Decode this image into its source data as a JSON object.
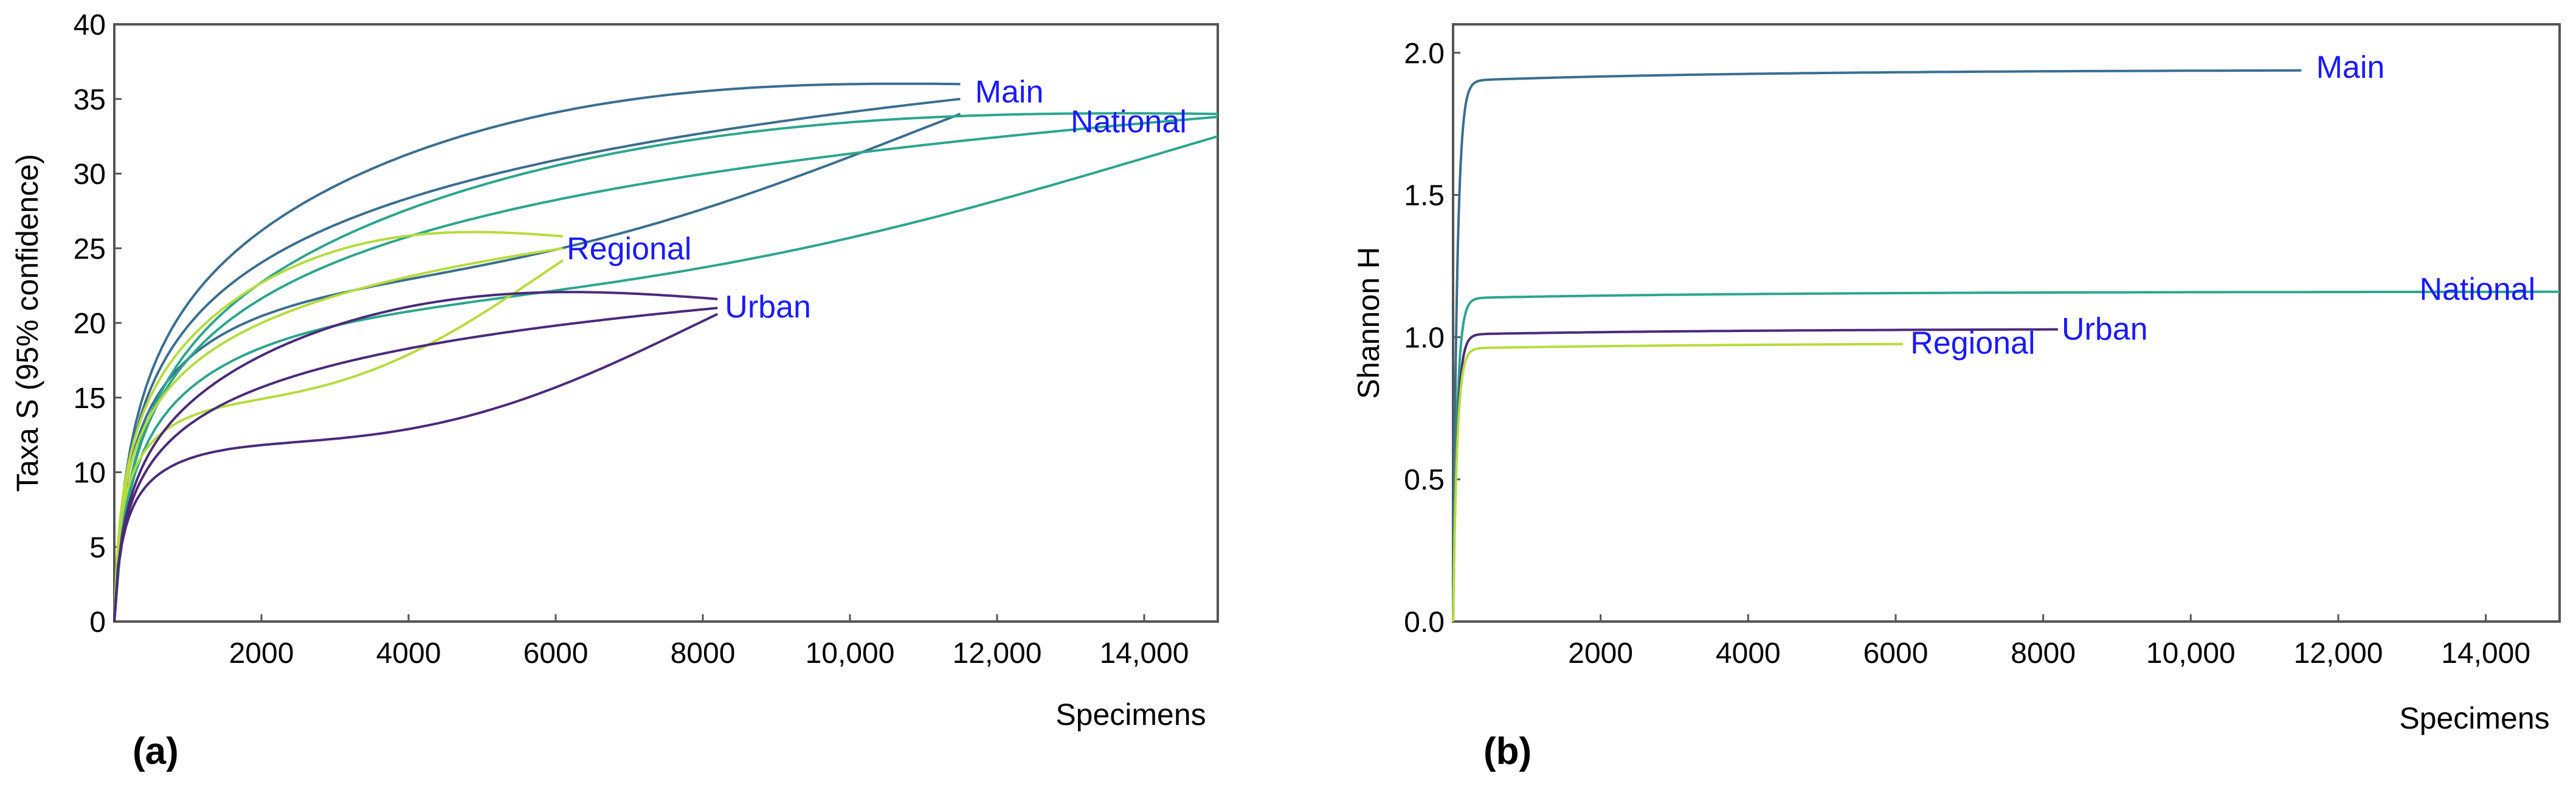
{
  "chart_data": [
    {
      "panel": "(a)",
      "type": "line",
      "xlabel": "Specimens",
      "ylabel": "Taxa S (95% confidence)",
      "xlim": [
        0,
        15000
      ],
      "ylim": [
        0,
        40
      ],
      "xticks": [
        2000,
        4000,
        6000,
        8000,
        10000,
        12000,
        14000
      ],
      "xtick_labels": [
        "2000",
        "4000",
        "6000",
        "8000",
        "10,000",
        "12,000",
        "14,000"
      ],
      "yticks": [
        0,
        5,
        10,
        15,
        20,
        25,
        30,
        35,
        40
      ],
      "ytick_labels": [
        "0",
        "5",
        "10",
        "15",
        "20",
        "25",
        "30",
        "35",
        "40"
      ],
      "series": [
        {
          "name": "Main",
          "color": "#3a6e8f",
          "n_max": 11500,
          "estimate": 35.0,
          "upper": 36.0,
          "lower": 34.0,
          "label_x": 11700,
          "label_y": 35.5
        },
        {
          "name": "National",
          "color": "#2ca58d",
          "n_max": 15000,
          "estimate": 33.8,
          "upper": 34.0,
          "lower": 32.5,
          "label_x": 13000,
          "label_y": 33.5
        },
        {
          "name": "Regional",
          "color": "#b5dc3c",
          "n_max": 6100,
          "estimate": 25.0,
          "upper": 25.8,
          "lower": 24.2,
          "label_x": 6150,
          "label_y": 25.0
        },
        {
          "name": "Urban",
          "color": "#4a2a7a",
          "n_max": 8200,
          "estimate": 21.0,
          "upper": 21.6,
          "lower": 20.6,
          "label_x": 8300,
          "label_y": 21.1
        }
      ]
    },
    {
      "panel": "(b)",
      "type": "line",
      "xlabel": "Specimens",
      "ylabel": "Shannon H",
      "xlim": [
        0,
        15000
      ],
      "ylim": [
        0,
        2.1
      ],
      "xticks": [
        2000,
        4000,
        6000,
        8000,
        10000,
        12000,
        14000
      ],
      "xtick_labels": [
        "2000",
        "4000",
        "6000",
        "8000",
        "10,000",
        "12,000",
        "14,000"
      ],
      "yticks": [
        0.0,
        0.5,
        1.0,
        1.5,
        2.0
      ],
      "ytick_labels": [
        "0.0",
        "0.5",
        "1.0",
        "1.5",
        "2.0"
      ],
      "series": [
        {
          "name": "Main",
          "color": "#3a6e8f",
          "n_max": 11500,
          "plateau": 1.94,
          "label_x": 11700,
          "label_y": 1.95
        },
        {
          "name": "National",
          "color": "#2ca58d",
          "n_max": 15000,
          "plateau": 1.16,
          "label_x": 13100,
          "label_y": 1.17
        },
        {
          "name": "Urban",
          "color": "#4a2a7a",
          "n_max": 8200,
          "plateau": 1.03,
          "label_x": 8250,
          "label_y": 1.03
        },
        {
          "name": "Regional",
          "color": "#b5dc3c",
          "n_max": 6100,
          "plateau": 0.98,
          "label_x": 6200,
          "label_y": 0.98
        }
      ]
    }
  ]
}
